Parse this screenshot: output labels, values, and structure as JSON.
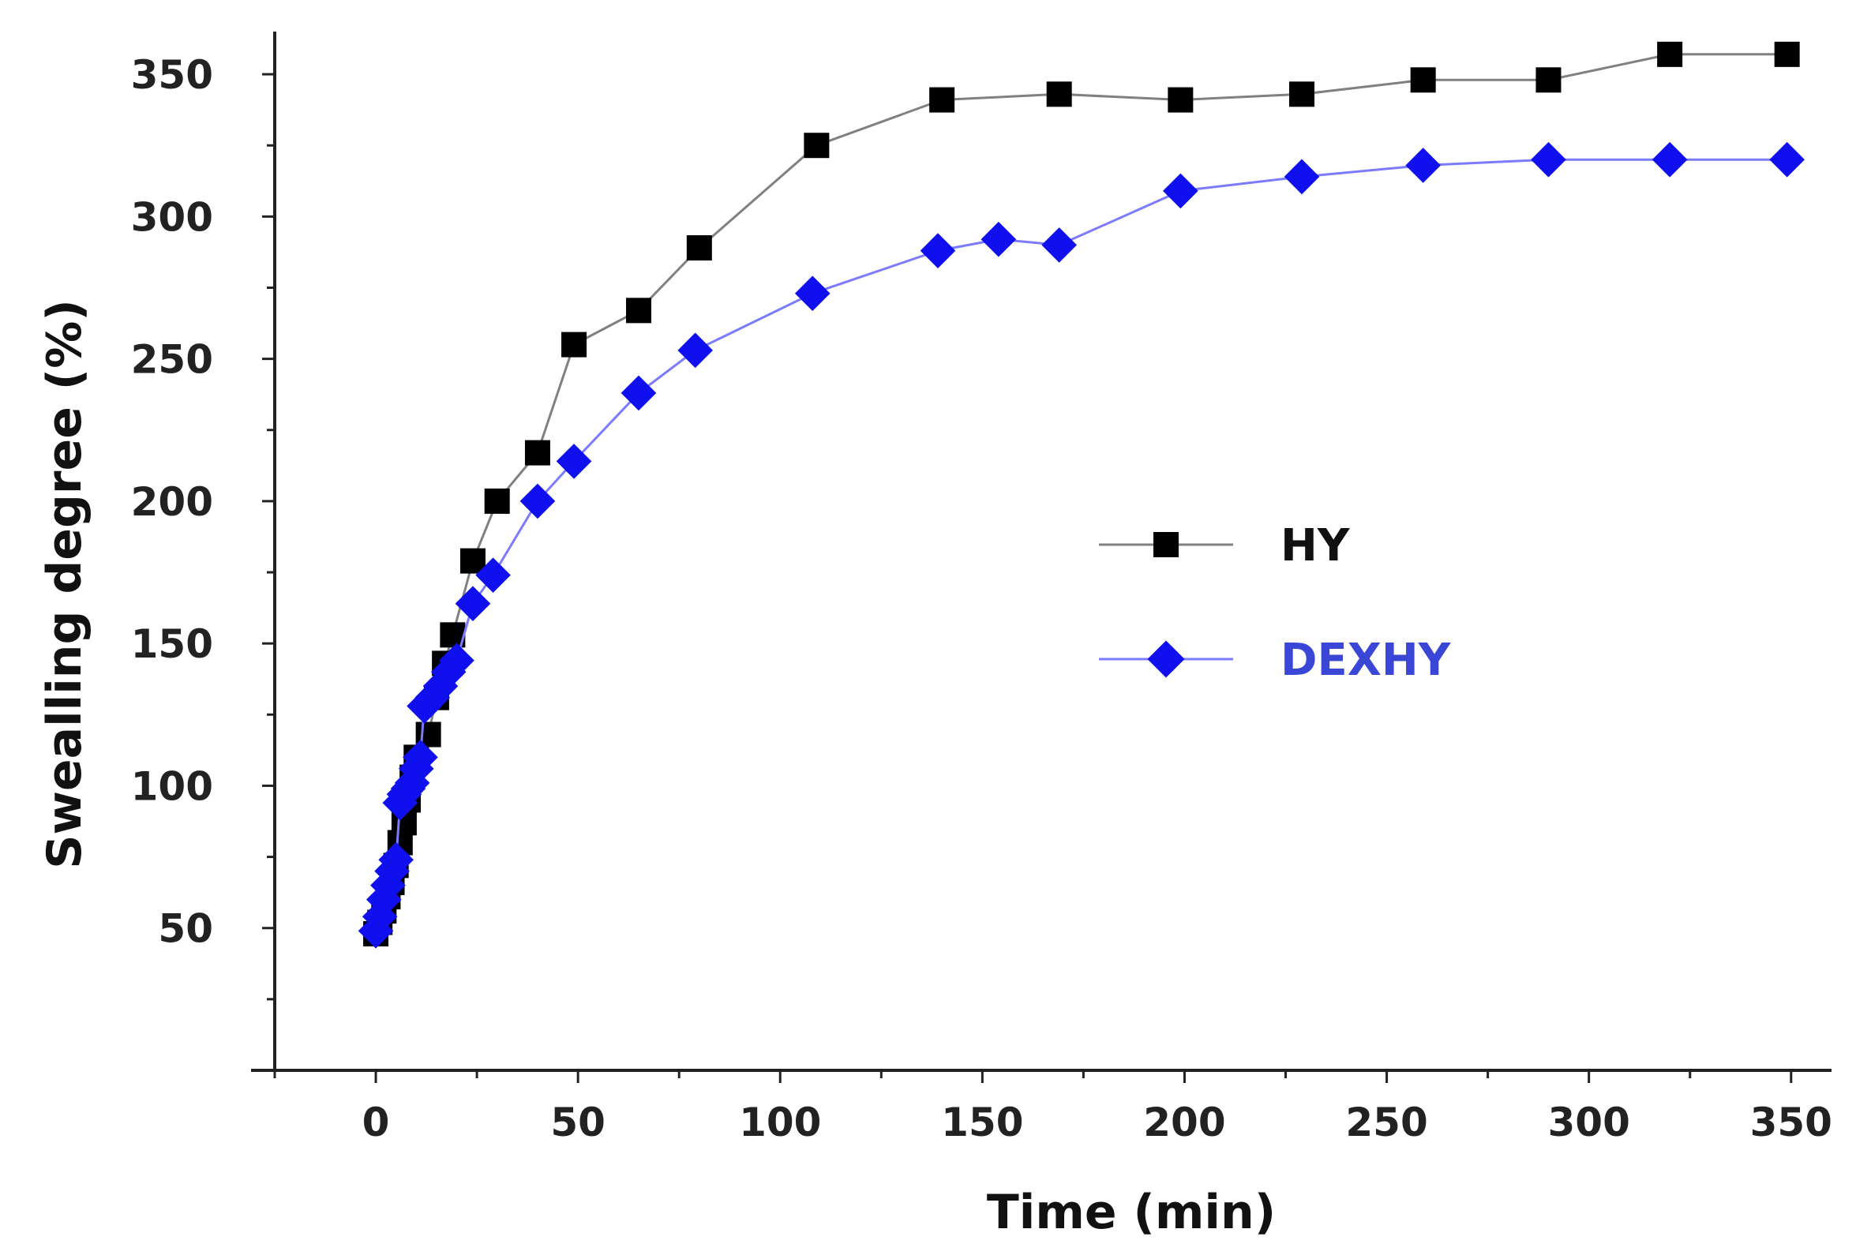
{
  "chart_data": {
    "type": "line",
    "title": "",
    "xlabel": "Time (min)",
    "ylabel": "Swealling degree (%)",
    "xlim": [
      -25,
      360
    ],
    "ylim": [
      0,
      365
    ],
    "xticks": [
      0,
      50,
      100,
      150,
      200,
      250,
      300,
      350
    ],
    "xtick_labels": [
      "0",
      "50",
      "100",
      "150",
      "200",
      "250",
      "300",
      "350"
    ],
    "yticks": [
      50,
      100,
      150,
      200,
      250,
      300,
      350
    ],
    "ytick_labels": [
      "50",
      "100",
      "150",
      "200",
      "250",
      "300",
      "350"
    ],
    "grid": false,
    "legend_position": "center-right",
    "series": [
      {
        "name": "HY",
        "marker": "square",
        "line_color": "#808080",
        "marker_color": "#000000",
        "label_color": "#111111",
        "points": [
          [
            0,
            48
          ],
          [
            1,
            52
          ],
          [
            2,
            56
          ],
          [
            3,
            61
          ],
          [
            4,
            66
          ],
          [
            5,
            72
          ],
          [
            6,
            80
          ],
          [
            7,
            87
          ],
          [
            8,
            95
          ],
          [
            9,
            103
          ],
          [
            10,
            110
          ],
          [
            13,
            118
          ],
          [
            15,
            131
          ],
          [
            17,
            143
          ],
          [
            19,
            153
          ],
          [
            24,
            179
          ],
          [
            30,
            200
          ],
          [
            40,
            217
          ],
          [
            49,
            255
          ],
          [
            65,
            267
          ],
          [
            80,
            289
          ],
          [
            109,
            325
          ],
          [
            140,
            341
          ],
          [
            169,
            343
          ],
          [
            199,
            341
          ],
          [
            229,
            343
          ],
          [
            259,
            348
          ],
          [
            290,
            348
          ],
          [
            320,
            357
          ],
          [
            349,
            357
          ]
        ]
      },
      {
        "name": "DEXHY",
        "marker": "diamond",
        "line_color": "#7b7bff",
        "marker_color": "#1010ee",
        "label_color": "#3a46d6",
        "points": [
          [
            0,
            49
          ],
          [
            1,
            54
          ],
          [
            2,
            60
          ],
          [
            3,
            65
          ],
          [
            4,
            70
          ],
          [
            5,
            74
          ],
          [
            6,
            94
          ],
          [
            7,
            97
          ],
          [
            8,
            99
          ],
          [
            9,
            101
          ],
          [
            10,
            106
          ],
          [
            11,
            110
          ],
          [
            12,
            128
          ],
          [
            14,
            131
          ],
          [
            16,
            135
          ],
          [
            18,
            140
          ],
          [
            20,
            144
          ],
          [
            24,
            164
          ],
          [
            29,
            174
          ],
          [
            40,
            200
          ],
          [
            49,
            214
          ],
          [
            65,
            238
          ],
          [
            79,
            253
          ],
          [
            108,
            273
          ],
          [
            139,
            288
          ],
          [
            154,
            292
          ],
          [
            169,
            290
          ],
          [
            199,
            309
          ],
          [
            229,
            314
          ],
          [
            259,
            318
          ],
          [
            290,
            320
          ],
          [
            320,
            320
          ],
          [
            349,
            320
          ]
        ]
      }
    ]
  }
}
